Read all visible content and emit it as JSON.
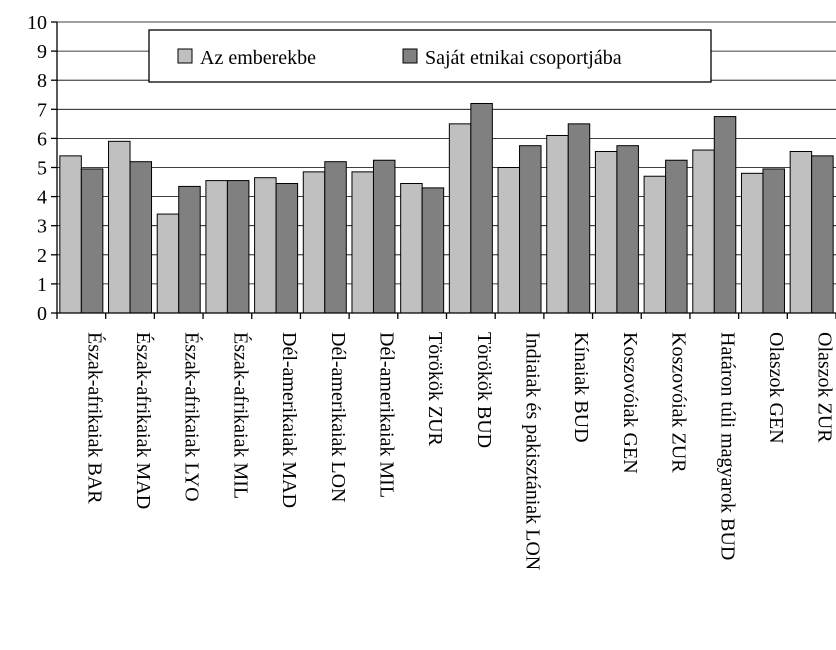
{
  "chart_data": {
    "type": "bar",
    "title": "",
    "xlabel": "",
    "ylabel": "",
    "ylim": [
      0,
      10
    ],
    "yticks": [
      0,
      1,
      2,
      3,
      4,
      5,
      6,
      7,
      8,
      9,
      10
    ],
    "grid": true,
    "legend_position": "top-center",
    "categories": [
      "Észak-afrikaiak BAR",
      "Észak-afrikaiak MAD",
      "Észak-afrikaiak LYO",
      "Észak-afrikaiak MIL",
      "Dél-amerikaiak MAD",
      "Dél-amerikaiak LON",
      "Dél-amerikaiak MIL",
      "Törökök ZUR",
      "Törökök BUD",
      "Indiaiak és pakisztániak LON",
      "Kínaiak BUD",
      "Koszovóiak GEN",
      "Koszovóiak ZUR",
      "Határon túli magyarok BUD",
      "Olaszok GEN",
      "Olaszok ZUR"
    ],
    "series": [
      {
        "name": "Az emberekbe",
        "color": "#c0c0c0",
        "values": [
          5.4,
          5.9,
          3.4,
          4.55,
          4.65,
          4.85,
          4.85,
          4.45,
          6.5,
          5.0,
          6.1,
          5.55,
          4.7,
          5.6,
          4.8,
          5.55
        ]
      },
      {
        "name": "Saját etnikai csoportjába",
        "color": "#808080",
        "values": [
          4.95,
          5.2,
          4.35,
          4.55,
          4.45,
          5.2,
          5.25,
          4.3,
          7.2,
          5.75,
          6.5,
          5.75,
          5.25,
          6.75,
          4.95,
          5.4
        ]
      }
    ]
  }
}
